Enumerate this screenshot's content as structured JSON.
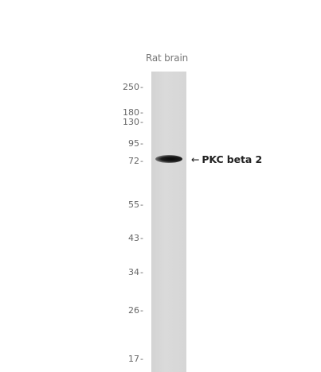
{
  "lane_label": "Rat brain",
  "markers": [
    {
      "label": "250"
    },
    {
      "label": "180"
    },
    {
      "label": "130"
    },
    {
      "label": "95"
    },
    {
      "label": "72"
    },
    {
      "label": "55"
    },
    {
      "label": "43"
    },
    {
      "label": "34"
    },
    {
      "label": "26"
    },
    {
      "label": "17"
    }
  ],
  "target_label": "PKC beta 2",
  "arrow_glyph": "←"
}
